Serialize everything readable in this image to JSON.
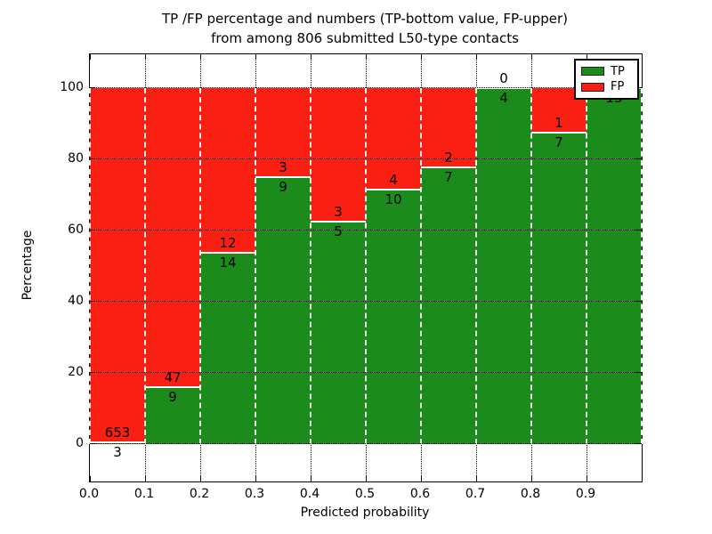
{
  "figure": {
    "title_line1": "TP /FP percentage and numbers (TP-bottom value, FP-upper)",
    "title_line2": "from among 806 submitted L50-type contacts",
    "xlabel": "Predicted probability",
    "ylabel": "Percentage"
  },
  "legend": {
    "position": "upper-right",
    "items": [
      {
        "label": "TP",
        "color": "#1b8c1b"
      },
      {
        "label": "FP",
        "color": "#f91f12"
      }
    ]
  },
  "chart_data": {
    "type": "bar",
    "stacked": true,
    "normalized_to_percent": true,
    "title": "TP /FP percentage and numbers (TP-bottom value, FP-upper) from among 806 submitted L50-type contacts",
    "xlabel": "Predicted probability",
    "ylabel": "Percentage",
    "total_contacts": 806,
    "bin_width": 0.1,
    "categories": [
      "0.0-0.1",
      "0.1-0.2",
      "0.2-0.3",
      "0.3-0.4",
      "0.4-0.5",
      "0.5-0.6",
      "0.6-0.7",
      "0.7-0.8",
      "0.8-0.9",
      "0.9-1.0"
    ],
    "series": [
      {
        "name": "TP",
        "color": "#1b8c1b",
        "counts": [
          3,
          9,
          14,
          9,
          5,
          10,
          7,
          4,
          7,
          13
        ]
      },
      {
        "name": "FP",
        "color": "#f91f12",
        "counts": [
          653,
          47,
          12,
          3,
          3,
          4,
          2,
          0,
          1,
          0
        ]
      }
    ],
    "tp_percent_of_bin": [
      0.46,
      16.07,
      53.85,
      75.0,
      62.5,
      71.43,
      77.78,
      100.0,
      87.5,
      100.0
    ],
    "x_ticks": [
      "0.0",
      "0.1",
      "0.2",
      "0.3",
      "0.4",
      "0.5",
      "0.6",
      "0.7",
      "0.8",
      "0.9"
    ],
    "y_ticks": [
      "0",
      "20",
      "40",
      "60",
      "80",
      "100"
    ],
    "xlim": [
      0.0,
      1.0
    ],
    "ylim": [
      -10.5,
      109.5
    ],
    "grid": "dotted-black",
    "bar_edge_style": "dashed-white",
    "legend_position": "upper-right"
  }
}
